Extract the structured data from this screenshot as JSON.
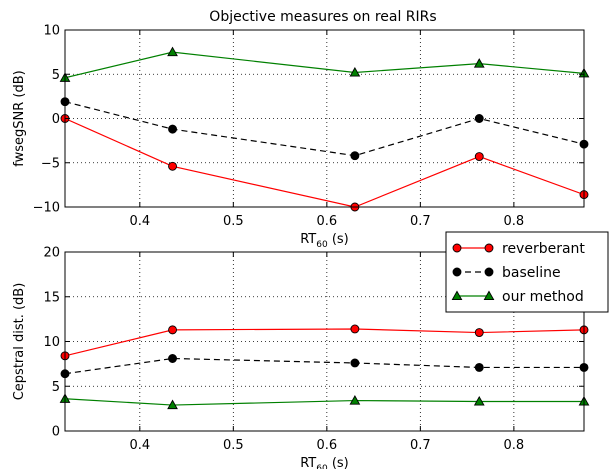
{
  "chart_data": [
    {
      "type": "line",
      "title": "Objective measures on real RIRs",
      "xlabel": "RT",
      "xlabel_sub": "60",
      "xlabel_unit": " (s)",
      "ylabel": "fwsegSNR (dB)",
      "xlim": [
        0.32,
        0.875
      ],
      "ylim": [
        -10,
        10
      ],
      "xticks": [
        0.4,
        0.5,
        0.6,
        0.7,
        0.8
      ],
      "xtick_labels": [
        "0.4",
        "0.5",
        "0.6",
        "0.7",
        "0.8"
      ],
      "yticks": [
        -10,
        -5,
        0,
        5,
        10
      ],
      "ytick_labels": [
        "−10",
        "−5",
        "0",
        "5",
        "10"
      ],
      "grid": true,
      "x": [
        0.32,
        0.435,
        0.63,
        0.763,
        0.875
      ],
      "series": [
        {
          "name": "reverberant",
          "values": [
            0.0,
            -5.4,
            -10.0,
            -4.3,
            -8.6
          ],
          "color": "#ff0000",
          "linestyle": "solid",
          "marker": "circle"
        },
        {
          "name": "baseline",
          "values": [
            1.9,
            -1.2,
            -4.2,
            0.0,
            -2.9
          ],
          "color": "#000000",
          "linestyle": "dashed",
          "marker": "circle"
        },
        {
          "name": "our method",
          "values": [
            4.6,
            7.5,
            5.2,
            6.2,
            5.1
          ],
          "color": "#008000",
          "linestyle": "solid",
          "marker": "triangle"
        }
      ]
    },
    {
      "type": "line",
      "title": "",
      "xlabel": "RT",
      "xlabel_sub": "60",
      "xlabel_unit": " (s)",
      "ylabel": "Cepstral dist. (dB)",
      "xlim": [
        0.32,
        0.875
      ],
      "ylim": [
        0,
        20
      ],
      "xticks": [
        0.4,
        0.5,
        0.6,
        0.7,
        0.8
      ],
      "xtick_labels": [
        "0.4",
        "0.5",
        "0.6",
        "0.7",
        "0.8"
      ],
      "yticks": [
        0,
        5,
        10,
        15,
        20
      ],
      "ytick_labels": [
        "0",
        "5",
        "10",
        "15",
        "20"
      ],
      "grid": true,
      "legend": "top-right",
      "x": [
        0.32,
        0.435,
        0.63,
        0.763,
        0.875
      ],
      "series": [
        {
          "name": "reverberant",
          "values": [
            8.4,
            11.3,
            11.4,
            11.0,
            11.3
          ],
          "color": "#ff0000",
          "linestyle": "solid",
          "marker": "circle"
        },
        {
          "name": "baseline",
          "values": [
            6.4,
            8.1,
            7.6,
            7.1,
            7.1
          ],
          "color": "#000000",
          "linestyle": "dashed",
          "marker": "circle"
        },
        {
          "name": "our method",
          "values": [
            3.6,
            2.9,
            3.4,
            3.3,
            3.3
          ],
          "color": "#008000",
          "linestyle": "solid",
          "marker": "triangle"
        }
      ]
    }
  ]
}
